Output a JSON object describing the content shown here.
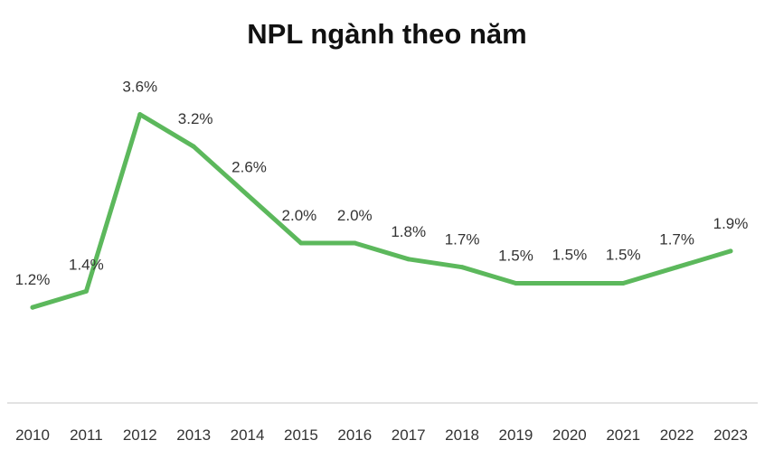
{
  "chart_data": {
    "type": "line",
    "title": "NPL ngành theo năm",
    "xlabel": "",
    "ylabel": "",
    "categories": [
      "2010",
      "2011",
      "2012",
      "2013",
      "2014",
      "2015",
      "2016",
      "2017",
      "2018",
      "2019",
      "2020",
      "2021",
      "2022",
      "2023"
    ],
    "series": [
      {
        "values": [
          1.2,
          1.4,
          3.6,
          3.2,
          2.6,
          2.0,
          2.0,
          1.8,
          1.7,
          1.5,
          1.5,
          1.5,
          1.7,
          1.9
        ],
        "labels": [
          "1.2%",
          "1.4%",
          "3.6%",
          "3.2%",
          "2.6%",
          "2.0%",
          "2.0%",
          "1.8%",
          "1.7%",
          "1.5%",
          "1.5%",
          "1.5%",
          "1.7%",
          "1.9%"
        ],
        "color": "#5cb85c"
      }
    ],
    "ylim": [
      0,
      4.5
    ],
    "grid": false,
    "legend": "none"
  },
  "colors": {
    "line": "#5cb85c",
    "axis": "#d9d9d9",
    "text": "#333333"
  }
}
